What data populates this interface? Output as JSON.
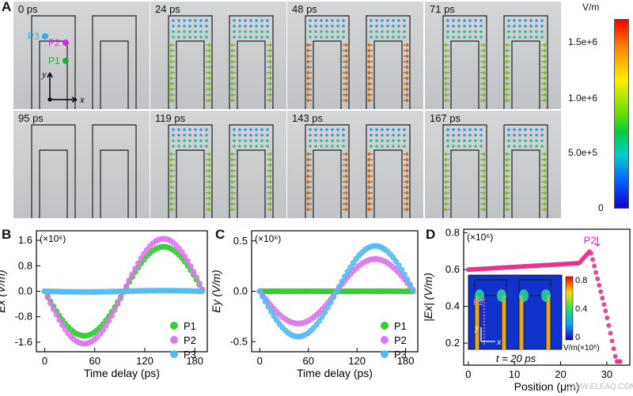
{
  "panel_a": {
    "letter": "A",
    "frames": [
      "0 ps",
      "24 ps",
      "48 ps",
      "71 ps",
      "95 ps",
      "119 ps",
      "143 ps",
      "167 ps"
    ],
    "probe_labels": [
      "P3",
      "P2",
      "P1"
    ],
    "axis_x": "x",
    "axis_y": "y",
    "colorbar_unit": "V/m",
    "colorbar_ticks": [
      "1.5e+6",
      "1.0e+6",
      "5.0e+5",
      "0"
    ]
  },
  "chart_data": [
    {
      "panel": "B",
      "type": "scatter",
      "multiplier": "(×10⁶)",
      "xlabel": "Time delay (ps)",
      "ylabel": "Ex (V/m)",
      "xlim": [
        -10,
        195
      ],
      "ylim": [
        -1.9,
        1.9
      ],
      "xticks": [
        "0",
        "60",
        "120",
        "180"
      ],
      "yticks": [
        "1.6",
        "0.8",
        "0.0",
        "-0.8",
        "-1.6"
      ],
      "series": [
        {
          "name": "P1",
          "color": "#33cc33",
          "amplitude": 1.4
        },
        {
          "name": "P2",
          "color": "#dd77ee",
          "amplitude": 1.65
        },
        {
          "name": "P3",
          "color": "#55bbee",
          "amplitude": 0.02
        }
      ]
    },
    {
      "panel": "C",
      "type": "scatter",
      "multiplier": "(×10⁶)",
      "xlabel": "Time delay (ps)",
      "ylabel": "Ey (V/m)",
      "xlim": [
        -10,
        195
      ],
      "ylim": [
        -0.6,
        0.6
      ],
      "xticks": [
        "0",
        "60",
        "120",
        "180"
      ],
      "yticks": [
        "0.5",
        "0.0",
        "-0.5"
      ],
      "series": [
        {
          "name": "P1",
          "color": "#33cc33",
          "amplitude": 0.0
        },
        {
          "name": "P2",
          "color": "#dd77ee",
          "amplitude": 0.32
        },
        {
          "name": "P3",
          "color": "#55bbee",
          "amplitude": 0.45
        }
      ]
    },
    {
      "panel": "D",
      "type": "scatter",
      "multiplier": "(×10⁶)",
      "xlabel": "Position (μm)",
      "ylabel": "|Ex| (V/m)",
      "xlim": [
        -1,
        35
      ],
      "ylim": [
        0.08,
        0.82
      ],
      "xticks": [
        "0",
        "10",
        "20",
        "30"
      ],
      "yticks": [
        "0.8",
        "0.6",
        "0.4",
        "0.2"
      ],
      "annotation": "P2",
      "inset": {
        "caption": "t = 20 ps",
        "colorbar_ticks": [
          "0.8",
          "0.4",
          "0"
        ],
        "colorbar_unit": "V/m(×10⁶)",
        "label": "P2",
        "axis_x": "x",
        "axis_y": "y"
      }
    }
  ],
  "watermark": "WWW.ELEAQ.COM"
}
